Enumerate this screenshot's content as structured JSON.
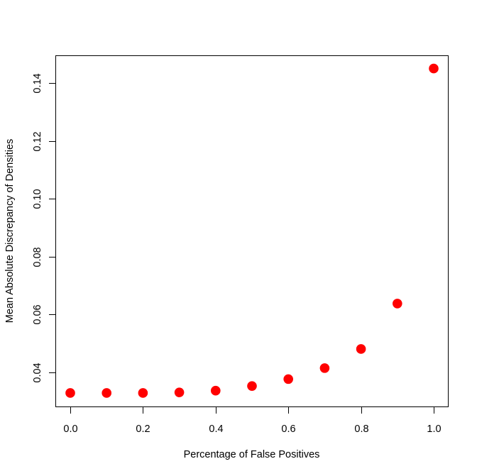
{
  "chart_data": {
    "type": "scatter",
    "title": "",
    "xlabel": "Percentage of False Positives",
    "ylabel": "Mean Absolute Discrepancy of Densities",
    "x": [
      0.0,
      0.1,
      0.2,
      0.3,
      0.4,
      0.5,
      0.6,
      0.7,
      0.8,
      0.9,
      1.0
    ],
    "series": [
      {
        "name": "discrepancy",
        "color": "#ff0000",
        "marker": "filled-circle",
        "values": [
          0.0329,
          0.0329,
          0.0329,
          0.0331,
          0.0337,
          0.0353,
          0.0377,
          0.0415,
          0.0481,
          0.0638,
          0.145
        ]
      }
    ],
    "xticks": [
      "0.0",
      "0.2",
      "0.4",
      "0.6",
      "0.8",
      "1.0"
    ],
    "yticks": [
      "0.04",
      "0.06",
      "0.08",
      "0.10",
      "0.12",
      "0.14"
    ],
    "xlim": [
      -0.04,
      1.04
    ],
    "ylim": [
      0.0291,
      0.1488
    ],
    "grid": false,
    "legend": null
  }
}
